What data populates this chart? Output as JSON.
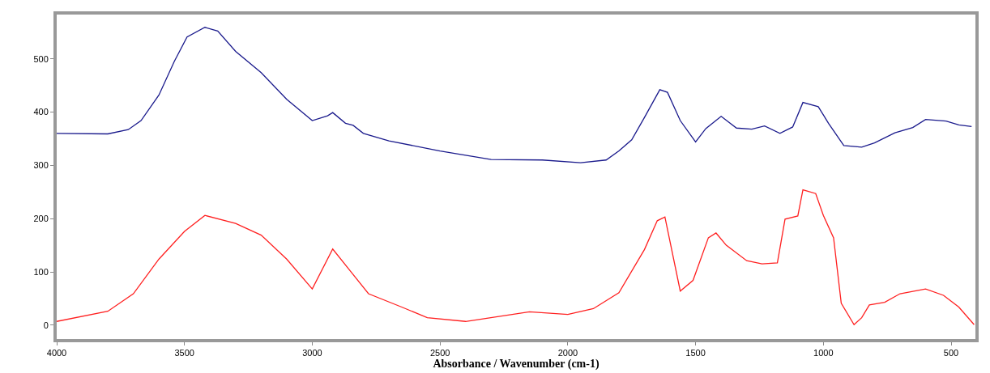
{
  "chart_data": {
    "type": "line",
    "xlabel": "Absorbance / Wavenumber (cm-1)",
    "xlim": [
      4000,
      405
    ],
    "ylim": [
      -26,
      583
    ],
    "xticks": [
      4000,
      3500,
      3000,
      2500,
      2000,
      1500,
      1000,
      500
    ],
    "yticks": [
      0,
      100,
      200,
      300,
      400,
      500
    ],
    "marker": "none",
    "line_style": "solid",
    "series": [
      {
        "color": "#1a1a8c",
        "x": [
          4000,
          3800,
          3720,
          3670,
          3600,
          3540,
          3490,
          3420,
          3370,
          3300,
          3200,
          3100,
          3000,
          2940,
          2920,
          2870,
          2840,
          2800,
          2700,
          2500,
          2300,
          2100,
          1950,
          1850,
          1800,
          1750,
          1700,
          1640,
          1610,
          1560,
          1500,
          1460,
          1400,
          1340,
          1280,
          1230,
          1170,
          1120,
          1080,
          1020,
          980,
          920,
          850,
          800,
          720,
          650,
          600,
          520,
          470,
          420
        ],
        "values": [
          360,
          359,
          367,
          384,
          432,
          495,
          541,
          559,
          552,
          514,
          474,
          424,
          384,
          393,
          399,
          379,
          375,
          360,
          346,
          327,
          311,
          310,
          305,
          310,
          327,
          348,
          390,
          442,
          437,
          384,
          344,
          369,
          392,
          370,
          368,
          374,
          360,
          372,
          418,
          410,
          379,
          337,
          334,
          342,
          361,
          371,
          386,
          383,
          376,
          373
        ]
      },
      {
        "color": "#ff2020",
        "x": [
          4000,
          3800,
          3700,
          3600,
          3500,
          3420,
          3300,
          3200,
          3100,
          3000,
          2920,
          2850,
          2780,
          2650,
          2550,
          2400,
          2150,
          2000,
          1900,
          1800,
          1700,
          1650,
          1620,
          1560,
          1510,
          1450,
          1420,
          1380,
          1300,
          1240,
          1180,
          1150,
          1100,
          1080,
          1030,
          1000,
          960,
          930,
          880,
          850,
          820,
          760,
          700,
          600,
          530,
          470,
          410
        ],
        "values": [
          7,
          26,
          59,
          124,
          176,
          206,
          191,
          169,
          124,
          68,
          143,
          101,
          59,
          34,
          14,
          7,
          25,
          20,
          31,
          61,
          142,
          196,
          203,
          64,
          84,
          164,
          173,
          150,
          121,
          115,
          117,
          199,
          205,
          254,
          247,
          206,
          164,
          41,
          1,
          14,
          38,
          43,
          59,
          68,
          56,
          34,
          1
        ]
      }
    ]
  }
}
